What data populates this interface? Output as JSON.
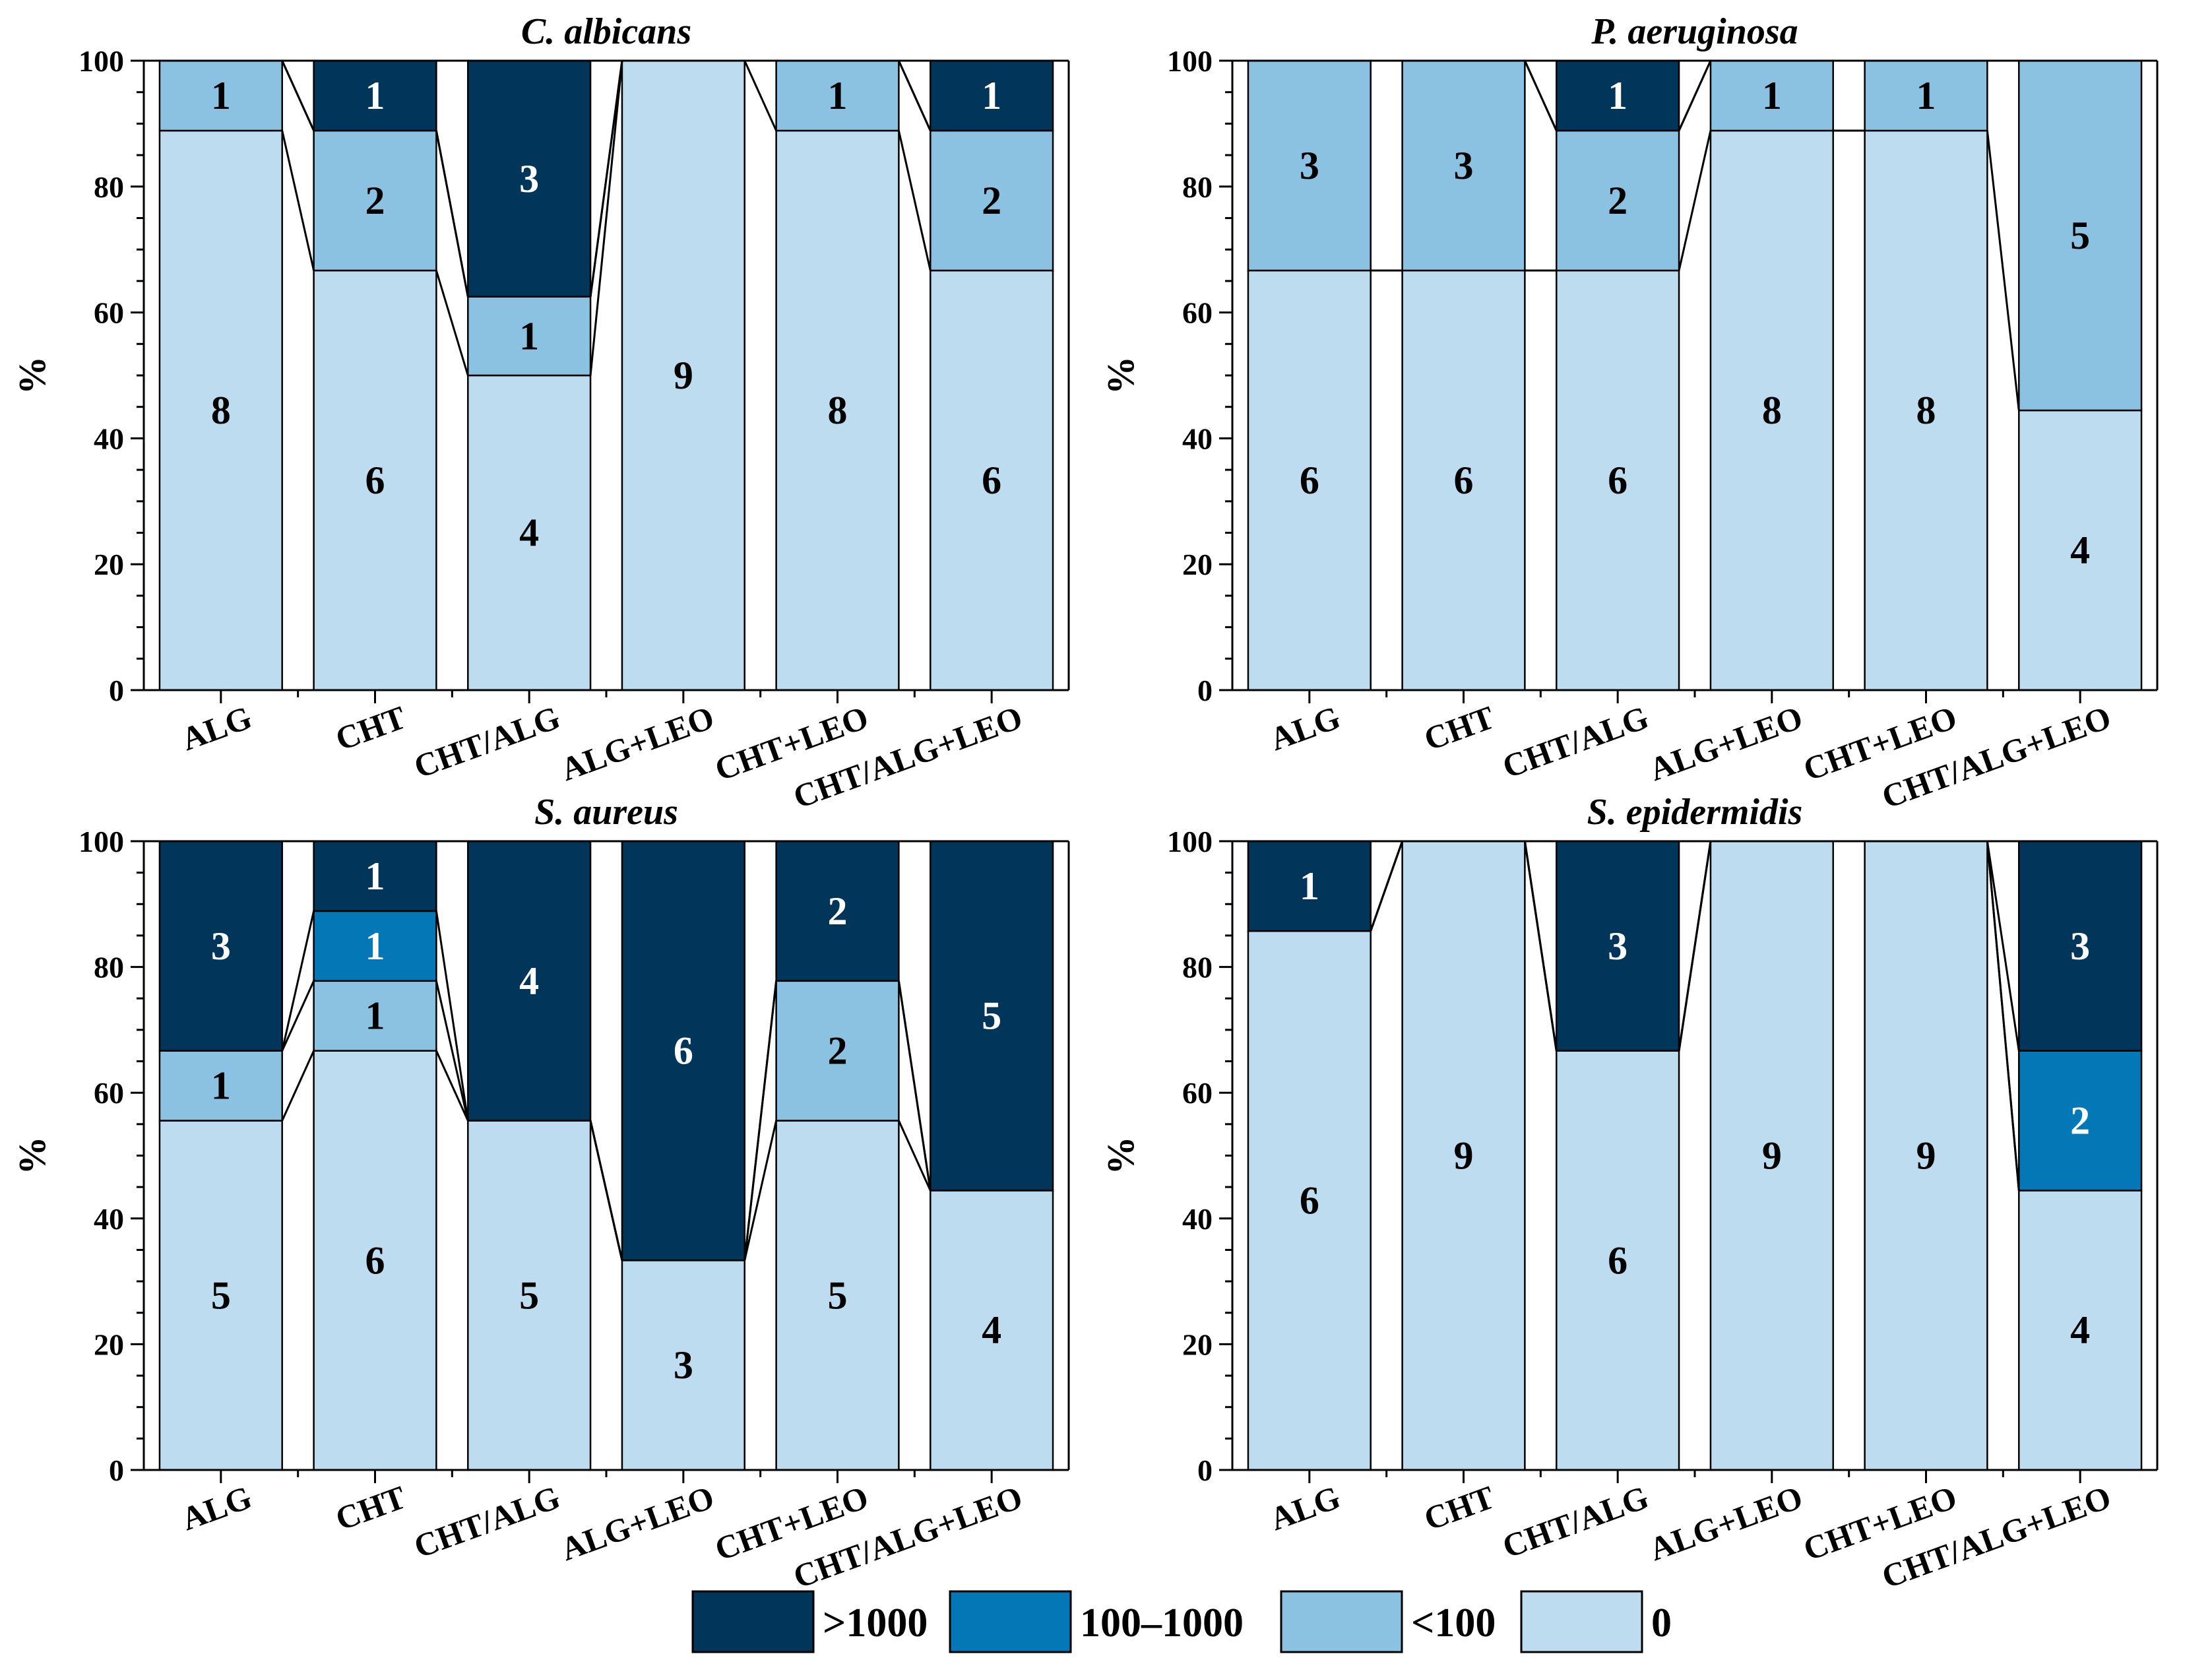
{
  "chart_data": {
    "type": "bar",
    "stacked": true,
    "ylabel": "%",
    "ylim": [
      0,
      100
    ],
    "yticks": [
      "0",
      "20",
      "40",
      "60",
      "80",
      "100"
    ],
    "categories": [
      "ALG",
      "CHT",
      "CHT/ALG",
      "ALG+LEO",
      "CHT+LEO",
      "CHT/ALG+LEO"
    ],
    "legend": {
      "placement": "bottom-center",
      "entries": [
        {
          "key": "gt1000",
          "label": ">1000",
          "color": "#02355a"
        },
        {
          "key": "mid",
          "label": "100–1000",
          "color": "#0478b6"
        },
        {
          "key": "lt100",
          "label": "<100",
          "color": "#8bc1e1"
        },
        {
          "key": "zero",
          "label": "0",
          "color": "#bddcef"
        }
      ]
    },
    "stack_order": [
      "zero",
      "lt100",
      "mid",
      "gt1000"
    ],
    "panels": [
      {
        "title": "C. albicans",
        "counts": [
          {
            "zero": 8,
            "lt100": 1,
            "mid": 0,
            "gt1000": 0
          },
          {
            "zero": 6,
            "lt100": 2,
            "mid": 0,
            "gt1000": 1
          },
          {
            "zero": 4,
            "lt100": 1,
            "mid": 0,
            "gt1000": 3
          },
          {
            "zero": 9,
            "lt100": 0,
            "mid": 0,
            "gt1000": 0
          },
          {
            "zero": 8,
            "lt100": 1,
            "mid": 0,
            "gt1000": 0
          },
          {
            "zero": 6,
            "lt100": 2,
            "mid": 0,
            "gt1000": 1
          }
        ]
      },
      {
        "title": "P. aeruginosa",
        "counts": [
          {
            "zero": 6,
            "lt100": 3,
            "mid": 0,
            "gt1000": 0
          },
          {
            "zero": 6,
            "lt100": 3,
            "mid": 0,
            "gt1000": 0
          },
          {
            "zero": 6,
            "lt100": 2,
            "mid": 0,
            "gt1000": 1
          },
          {
            "zero": 8,
            "lt100": 1,
            "mid": 0,
            "gt1000": 0
          },
          {
            "zero": 8,
            "lt100": 1,
            "mid": 0,
            "gt1000": 0
          },
          {
            "zero": 4,
            "lt100": 5,
            "mid": 0,
            "gt1000": 0
          }
        ]
      },
      {
        "title": "S. aureus",
        "counts": [
          {
            "zero": 5,
            "lt100": 1,
            "mid": 0,
            "gt1000": 3
          },
          {
            "zero": 6,
            "lt100": 1,
            "mid": 1,
            "gt1000": 1
          },
          {
            "zero": 5,
            "lt100": 0,
            "mid": 0,
            "gt1000": 4
          },
          {
            "zero": 3,
            "lt100": 0,
            "mid": 0,
            "gt1000": 6
          },
          {
            "zero": 5,
            "lt100": 2,
            "mid": 0,
            "gt1000": 2
          },
          {
            "zero": 4,
            "lt100": 0,
            "mid": 0,
            "gt1000": 5
          }
        ]
      },
      {
        "title": "S. epidermidis",
        "counts": [
          {
            "zero": 6,
            "lt100": 0,
            "mid": 0,
            "gt1000": 1
          },
          {
            "zero": 9,
            "lt100": 0,
            "mid": 0,
            "gt1000": 0
          },
          {
            "zero": 6,
            "lt100": 0,
            "mid": 0,
            "gt1000": 3
          },
          {
            "zero": 9,
            "lt100": 0,
            "mid": 0,
            "gt1000": 0
          },
          {
            "zero": 9,
            "lt100": 0,
            "mid": 0,
            "gt1000": 0
          },
          {
            "zero": 4,
            "lt100": 0,
            "mid": 2,
            "gt1000": 3
          }
        ]
      }
    ]
  }
}
